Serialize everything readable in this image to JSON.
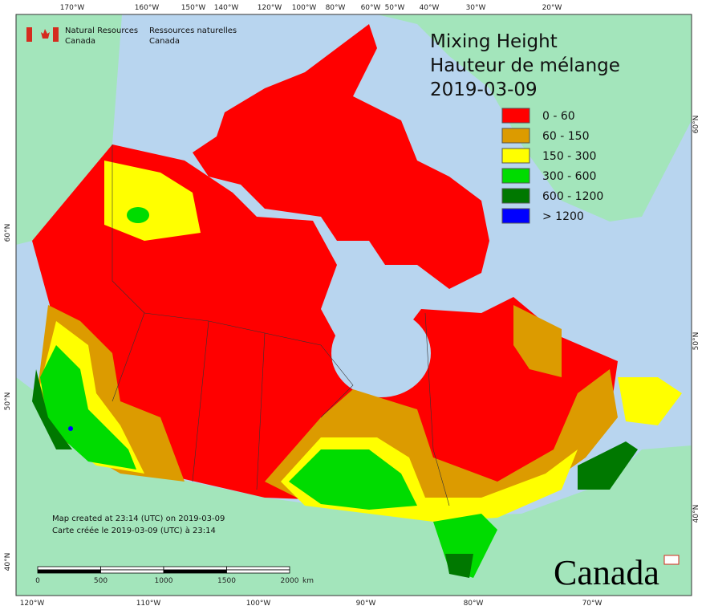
{
  "agency": {
    "en_line1": "Natural Resources",
    "en_line2": "Canada",
    "fr_line1": "Ressources naturelles",
    "fr_line2": "Canada"
  },
  "title": {
    "line1": "Mixing Height",
    "line2": "Hauteur de mélange",
    "date": "2019-03-09"
  },
  "legend": [
    {
      "label": "0 - 60",
      "color": "#ff0000"
    },
    {
      "label": "60 - 150",
      "color": "#dc9b00"
    },
    {
      "label": "150 - 300",
      "color": "#ffff00"
    },
    {
      "label": "300 - 600",
      "color": "#00dc00"
    },
    {
      "label": "600 - 1200",
      "color": "#007800"
    },
    {
      "label": "> 1200",
      "color": "#0000ff"
    }
  ],
  "top_longitudes": [
    "170°W",
    "160°W",
    "150°W",
    "140°W",
    "120°W",
    "100°W",
    "80°W",
    "60°W",
    "50°W",
    "40°W",
    "30°W",
    "20°W"
  ],
  "bottom_longitudes": [
    "120°W",
    "110°W",
    "100°W",
    "90°W",
    "80°W",
    "70°W"
  ],
  "left_latitudes": [
    "60°N",
    "50°N",
    "40°N"
  ],
  "right_latitudes": [
    "60°N",
    "50°N",
    "40°N"
  ],
  "credit": {
    "en": "Map created at 23:14 (UTC) on 2019-03-09",
    "fr": "Carte créée le 2019-03-09 (UTC) à 23:14"
  },
  "scale": {
    "labels": [
      "0",
      "500",
      "1000",
      "1500",
      "2000"
    ],
    "unit": "km"
  },
  "wordmark": "Canada"
}
